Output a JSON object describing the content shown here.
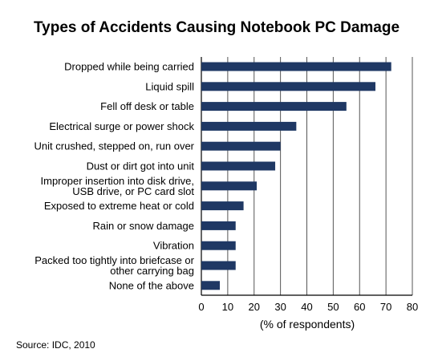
{
  "chart_data": {
    "type": "bar",
    "orientation": "horizontal",
    "title": "Types of Accidents Causing Notebook PC Damage",
    "xlabel": "(% of respondents)",
    "ylabel": "",
    "xlim": [
      0,
      80
    ],
    "x_ticks": [
      0,
      10,
      20,
      30,
      40,
      50,
      60,
      70,
      80
    ],
    "grid": true,
    "categories": [
      [
        "Dropped while being carried"
      ],
      [
        "Liquid spill"
      ],
      [
        "Fell off desk or table"
      ],
      [
        "Electrical surge or power shock"
      ],
      [
        "Unit crushed, stepped on, run over"
      ],
      [
        "Dust or dirt got into unit"
      ],
      [
        "Improper insertion into disk drive,",
        "USB drive, or PC card slot"
      ],
      [
        "Exposed to extreme heat or cold"
      ],
      [
        "Rain or snow damage"
      ],
      [
        "Vibration"
      ],
      [
        "Packed too tightly into briefcase or",
        "other carrying bag"
      ],
      [
        "None of the above"
      ]
    ],
    "values": [
      72,
      66,
      55,
      36,
      30,
      28,
      21,
      16,
      13,
      13,
      13,
      7
    ],
    "bar_color": "#1f3864",
    "grid_color": "#555555",
    "source": "Source: IDC, 2010"
  }
}
